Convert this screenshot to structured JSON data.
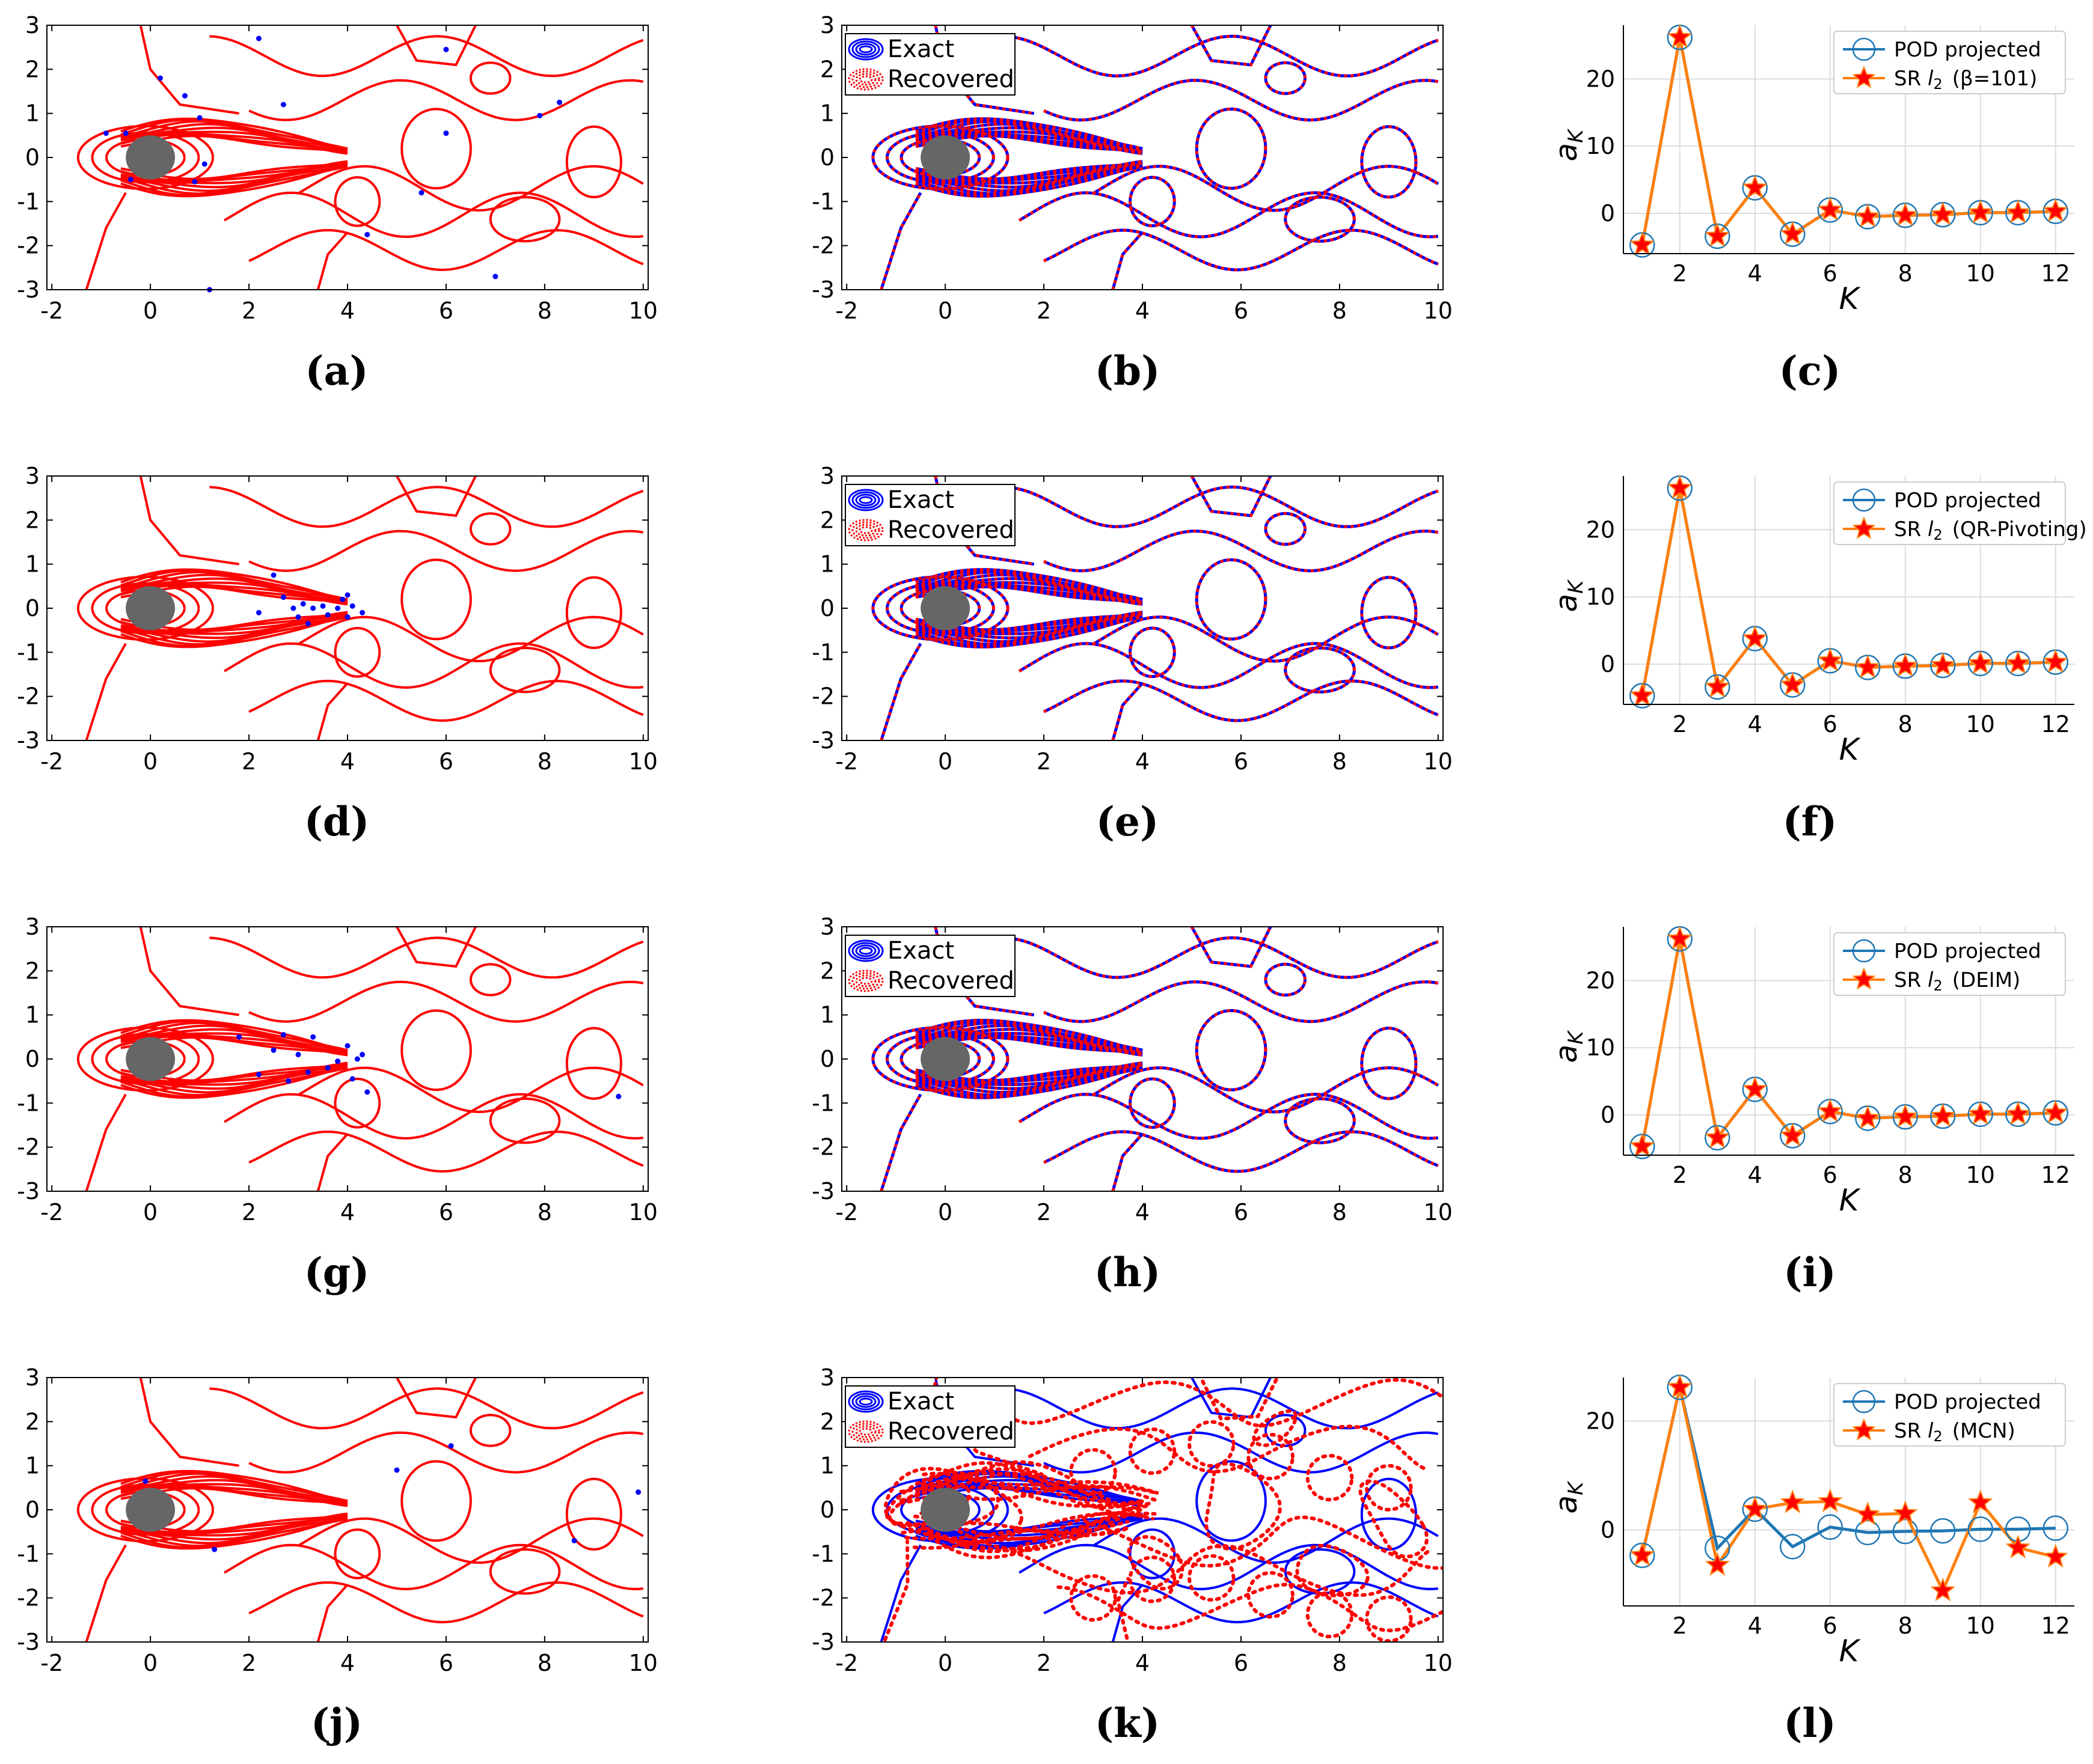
{
  "figure": {
    "contour_xticks": [
      "-2",
      "0",
      "2",
      "4",
      "6",
      "8",
      "10"
    ],
    "contour_yticks": [
      "3",
      "2",
      "1",
      "0",
      "-1",
      "-2",
      "-3"
    ],
    "coef_xticks": [
      "2",
      "4",
      "6",
      "8",
      "10",
      "12"
    ],
    "coef_yticks": [
      "20",
      "10",
      "0"
    ],
    "coef_yticks_l": [
      "20",
      "0"
    ],
    "xlabel": "K",
    "ylabel": "a",
    "ylabel_sub": "K",
    "legend_exact": "Exact",
    "legend_recovered": "Recovered",
    "legend_pod": "POD projected",
    "colors": {
      "red": "#ff0000",
      "blue": "#0000ff",
      "pod": "#1f77b4",
      "sr": "#ff7f0e",
      "cylinder": "#666666"
    }
  },
  "captions": [
    "(a)",
    "(b)",
    "(c)",
    "(d)",
    "(e)",
    "(f)",
    "(g)",
    "(h)",
    "(i)",
    "(j)",
    "(k)",
    "(l)"
  ],
  "sensor_rows": [
    {
      "name": "beta-101",
      "points": [
        [
          -0.9,
          0.55
        ],
        [
          -0.5,
          0.55
        ],
        [
          0.2,
          1.8
        ],
        [
          0.7,
          1.4
        ],
        [
          1.0,
          0.9
        ],
        [
          1.1,
          -0.15
        ],
        [
          0.9,
          -0.55
        ],
        [
          -0.4,
          -0.5
        ],
        [
          1.2,
          -3.0
        ],
        [
          2.2,
          2.7
        ],
        [
          2.7,
          1.2
        ],
        [
          4.4,
          -1.75
        ],
        [
          5.5,
          -0.8
        ],
        [
          6.0,
          2.45
        ],
        [
          6.0,
          0.55
        ],
        [
          7.0,
          -2.7
        ],
        [
          7.9,
          0.95
        ],
        [
          8.3,
          1.25
        ]
      ]
    },
    {
      "name": "qr-pivoting",
      "points": [
        [
          2.2,
          -0.1
        ],
        [
          2.5,
          0.75
        ],
        [
          2.7,
          0.25
        ],
        [
          2.9,
          0.0
        ],
        [
          3.0,
          -0.2
        ],
        [
          3.1,
          0.1
        ],
        [
          3.2,
          -0.35
        ],
        [
          3.3,
          0.0
        ],
        [
          3.5,
          0.05
        ],
        [
          3.6,
          -0.15
        ],
        [
          3.8,
          0.0
        ],
        [
          3.9,
          0.2
        ],
        [
          4.0,
          -0.2
        ],
        [
          4.0,
          0.3
        ],
        [
          4.1,
          0.05
        ],
        [
          4.3,
          -0.1
        ]
      ]
    },
    {
      "name": "deim",
      "points": [
        [
          1.8,
          0.5
        ],
        [
          2.2,
          -0.35
        ],
        [
          2.5,
          0.2
        ],
        [
          2.7,
          0.55
        ],
        [
          2.8,
          -0.5
        ],
        [
          3.0,
          0.1
        ],
        [
          3.2,
          -0.3
        ],
        [
          3.3,
          0.5
        ],
        [
          3.6,
          -0.2
        ],
        [
          3.8,
          -0.05
        ],
        [
          4.0,
          0.3
        ],
        [
          4.1,
          -0.45
        ],
        [
          4.2,
          0.0
        ],
        [
          4.4,
          -0.75
        ],
        [
          4.3,
          0.1
        ],
        [
          9.5,
          -0.85
        ]
      ]
    },
    {
      "name": "mcn",
      "points": [
        [
          -0.1,
          0.65
        ],
        [
          1.3,
          -0.9
        ],
        [
          5.0,
          0.9
        ],
        [
          6.1,
          1.45
        ],
        [
          8.6,
          -0.7
        ],
        [
          9.9,
          0.4
        ]
      ]
    }
  ],
  "chart_data": [
    {
      "type": "line",
      "panel": "(c)",
      "title": "",
      "xlabel": "K",
      "ylabel": "a_K",
      "xlim": [
        0.5,
        12.5
      ],
      "ylim": [
        -6,
        28
      ],
      "x": [
        1,
        2,
        3,
        4,
        5,
        6,
        7,
        8,
        9,
        10,
        11,
        12
      ],
      "series": [
        {
          "name": "POD projected",
          "values": [
            -4.7,
            26.2,
            -3.4,
            3.8,
            -3.1,
            0.5,
            -0.5,
            -0.3,
            -0.2,
            0.1,
            0.1,
            0.3
          ]
        },
        {
          "name": "SR l2 (β=101)",
          "values": [
            -4.7,
            26.2,
            -3.4,
            3.8,
            -3.1,
            0.5,
            -0.5,
            -0.3,
            -0.2,
            0.1,
            0.1,
            0.3
          ]
        }
      ],
      "legend": {
        "sr_prefix": "SR",
        "sr_l": "l",
        "sr_sub": "2",
        "sr_suffix": "(β=101)"
      }
    },
    {
      "type": "line",
      "panel": "(f)",
      "title": "",
      "xlabel": "K",
      "ylabel": "a_K",
      "xlim": [
        0.5,
        12.5
      ],
      "ylim": [
        -6,
        28
      ],
      "x": [
        1,
        2,
        3,
        4,
        5,
        6,
        7,
        8,
        9,
        10,
        11,
        12
      ],
      "series": [
        {
          "name": "POD projected",
          "values": [
            -4.7,
            26.2,
            -3.4,
            3.8,
            -3.1,
            0.5,
            -0.5,
            -0.3,
            -0.2,
            0.1,
            0.1,
            0.3
          ]
        },
        {
          "name": "SR l2 (QR-Pivoting)",
          "values": [
            -4.7,
            26.2,
            -3.4,
            3.8,
            -3.1,
            0.5,
            -0.5,
            -0.3,
            -0.2,
            0.1,
            0.1,
            0.3
          ]
        }
      ],
      "legend": {
        "sr_prefix": "SR",
        "sr_l": "l",
        "sr_sub": "2",
        "sr_suffix": "(QR-Pivoting)"
      }
    },
    {
      "type": "line",
      "panel": "(i)",
      "title": "",
      "xlabel": "K",
      "ylabel": "a_K",
      "xlim": [
        0.5,
        12.5
      ],
      "ylim": [
        -6,
        28
      ],
      "x": [
        1,
        2,
        3,
        4,
        5,
        6,
        7,
        8,
        9,
        10,
        11,
        12
      ],
      "series": [
        {
          "name": "POD projected",
          "values": [
            -4.7,
            26.2,
            -3.4,
            3.8,
            -3.1,
            0.5,
            -0.5,
            -0.3,
            -0.2,
            0.1,
            0.1,
            0.3
          ]
        },
        {
          "name": "SR l2 (DEIM)",
          "values": [
            -4.7,
            26.2,
            -3.4,
            3.8,
            -3.1,
            0.5,
            -0.5,
            -0.3,
            -0.2,
            0.1,
            0.1,
            0.3
          ]
        }
      ],
      "legend": {
        "sr_prefix": "SR",
        "sr_l": "l",
        "sr_sub": "2",
        "sr_suffix": "(DEIM)"
      }
    },
    {
      "type": "line",
      "panel": "(l)",
      "title": "",
      "xlabel": "K",
      "ylabel": "a_K",
      "xlim": [
        0.5,
        12.5
      ],
      "ylim": [
        -14,
        28
      ],
      "x": [
        1,
        2,
        3,
        4,
        5,
        6,
        7,
        8,
        9,
        10,
        11,
        12
      ],
      "series": [
        {
          "name": "POD projected",
          "values": [
            -4.7,
            26.2,
            -3.4,
            3.8,
            -3.1,
            0.5,
            -0.5,
            -0.3,
            -0.2,
            0.1,
            0.1,
            0.3
          ]
        },
        {
          "name": "SR l2 (MCN)",
          "values": [
            -4.7,
            26.2,
            -6.5,
            3.8,
            5.0,
            5.2,
            2.8,
            3.0,
            -11.2,
            5.0,
            -3.3,
            -5.0
          ]
        }
      ],
      "legend": {
        "sr_prefix": "SR",
        "sr_l": "l",
        "sr_sub": "2",
        "sr_suffix": "(MCN)"
      }
    }
  ]
}
